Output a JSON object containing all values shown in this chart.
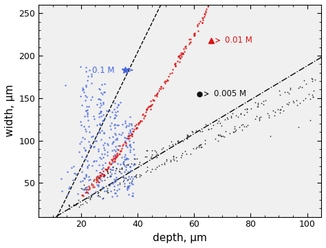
{
  "title": "",
  "xlabel": "depth, μm",
  "ylabel": "width, μm",
  "xlim": [
    5,
    105
  ],
  "ylim": [
    10,
    260
  ],
  "xticks": [
    20,
    40,
    60,
    80,
    100
  ],
  "yticks": [
    50,
    100,
    150,
    200,
    250
  ],
  "background_color": "#f0f0f0",
  "blue_color": "#4466dd",
  "red_color": "#dd1111",
  "black_color": "#111111",
  "ann_blue_x": 32,
  "ann_blue_y": 183,
  "ann_red_x": 70,
  "ann_red_y": 218,
  "ann_black_x": 66,
  "ann_black_y": 155,
  "dashed_slope": 6.8,
  "dashed_intercept": -68,
  "dashdot_slope": 2.0,
  "dashdot_intercept": -12
}
